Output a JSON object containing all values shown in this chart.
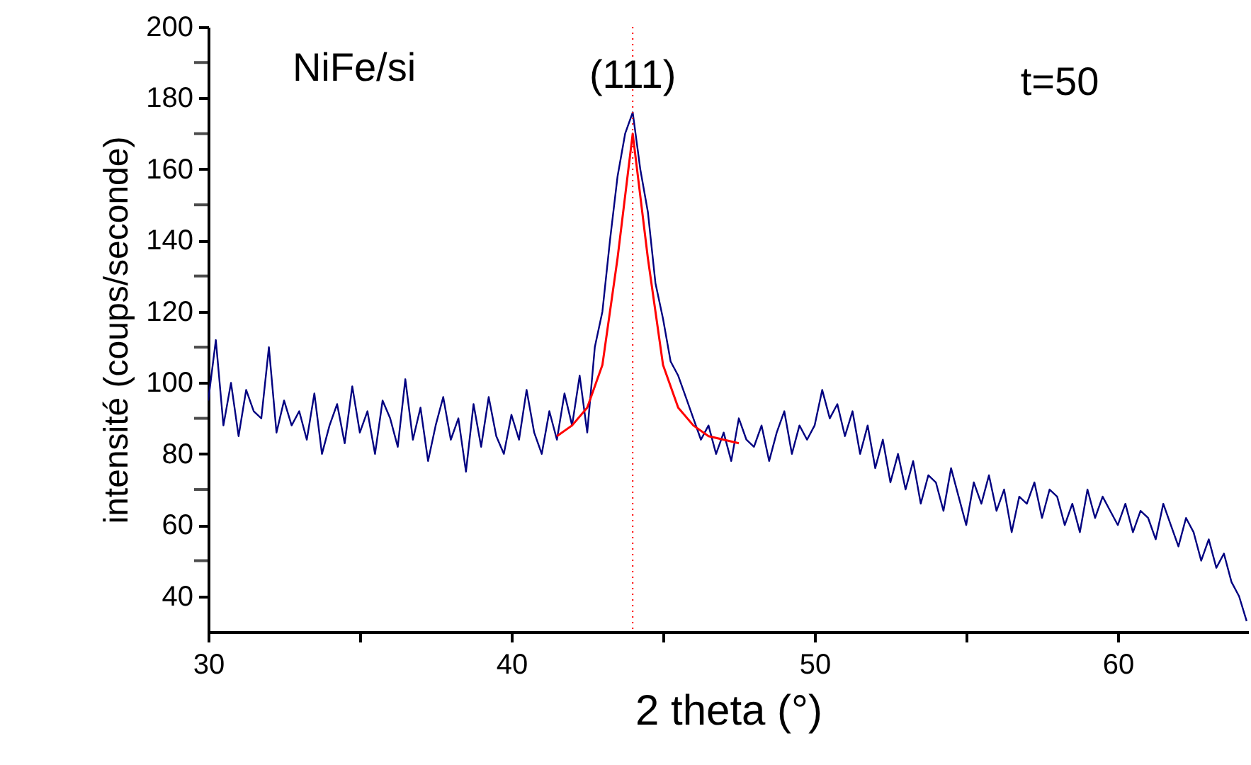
{
  "chart_data": {
    "type": "line",
    "xlabel": "2 theta (°)",
    "ylabel": "intensité (coups/seconde)",
    "annotations": [
      "NiFe/si",
      "t=50",
      {
        "text": "(111)",
        "x": 44,
        "y": 186
      }
    ],
    "series": [
      {
        "color": "#000080",
        "line_style": "solid",
        "x": [
          30,
          30.25,
          30.5,
          30.75,
          31,
          31.25,
          31.5,
          31.75,
          32,
          32.25,
          32.5,
          32.75,
          33,
          33.25,
          33.5,
          33.75,
          34,
          34.25,
          34.5,
          34.75,
          35,
          35.25,
          35.5,
          35.75,
          36,
          36.25,
          36.5,
          36.75,
          37,
          37.25,
          37.5,
          37.75,
          38,
          38.25,
          38.5,
          38.75,
          39,
          39.25,
          39.5,
          39.75,
          40,
          40.25,
          40.5,
          40.75,
          41,
          41.25,
          41.5,
          41.75,
          42,
          42.25,
          42.5,
          42.75,
          43,
          43.25,
          43.5,
          43.75,
          44,
          44.25,
          44.5,
          44.75,
          45,
          45.25,
          45.5,
          45.75,
          46,
          46.25,
          46.5,
          46.75,
          47,
          47.25,
          47.5,
          47.75,
          48,
          48.25,
          48.5,
          48.75,
          49,
          49.25,
          49.5,
          49.75,
          50,
          50.25,
          50.5,
          50.75,
          51,
          51.25,
          51.5,
          51.75,
          52,
          52.25,
          52.5,
          52.75,
          53,
          53.25,
          53.5,
          53.75,
          54,
          54.25,
          54.5,
          54.75,
          55,
          55.25,
          55.5,
          55.75,
          56,
          56.25,
          56.5,
          56.75,
          57,
          57.25,
          57.5,
          57.75,
          58,
          58.25,
          58.5,
          58.75,
          59,
          59.25,
          59.5,
          59.75,
          60,
          60.25,
          60.5,
          60.75,
          61,
          61.25,
          61.5,
          61.75,
          62,
          62.25,
          62.5,
          62.75,
          63,
          63.25,
          63.5,
          63.75,
          64,
          64.25
        ],
        "values": [
          95,
          112,
          88,
          100,
          85,
          98,
          92,
          90,
          110,
          86,
          95,
          88,
          92,
          84,
          97,
          80,
          88,
          94,
          83,
          99,
          86,
          92,
          80,
          95,
          90,
          82,
          101,
          84,
          93,
          78,
          88,
          96,
          84,
          90,
          75,
          94,
          82,
          96,
          85,
          80,
          91,
          84,
          98,
          86,
          80,
          92,
          84,
          97,
          88,
          102,
          86,
          110,
          120,
          140,
          158,
          170,
          176,
          160,
          148,
          128,
          118,
          106,
          102,
          96,
          90,
          84,
          88,
          80,
          86,
          78,
          90,
          84,
          82,
          88,
          78,
          86,
          92,
          80,
          88,
          84,
          88,
          98,
          90,
          94,
          85,
          92,
          80,
          88,
          76,
          84,
          72,
          80,
          70,
          78,
          66,
          74,
          72,
          64,
          76,
          68,
          60,
          72,
          66,
          74,
          64,
          70,
          58,
          68,
          66,
          72,
          62,
          70,
          68,
          60,
          66,
          58,
          70,
          62,
          68,
          64,
          60,
          66,
          58,
          64,
          62,
          56,
          66,
          60,
          54,
          62,
          58,
          50,
          56,
          48,
          52,
          44,
          40,
          33
        ]
      },
      {
        "color": "#ff0000",
        "line_style": "solid",
        "x": [
          41.5,
          42,
          42.5,
          43,
          43.5,
          44,
          44.5,
          45,
          45.5,
          46,
          46.5,
          47,
          47.5
        ],
        "values": [
          85,
          88,
          93,
          105,
          135,
          170,
          135,
          105,
          93,
          88,
          85,
          84,
          83
        ]
      }
    ],
    "ref_lines": [
      {
        "axis": "x",
        "value": 44,
        "color": "#ff0000",
        "line_style": "dotted"
      }
    ],
    "xlim": [
      30,
      64.3
    ],
    "ylim": [
      30,
      200
    ],
    "xticks": [
      30,
      {
        "value": 35,
        "label": null
      },
      40,
      {
        "value": 45,
        "label": null
      },
      50,
      {
        "value": 55,
        "label": null
      },
      60
    ],
    "yticks": [
      40,
      {
        "value": 50,
        "label": null
      },
      60,
      {
        "value": 70,
        "label": null
      },
      80,
      {
        "value": 90,
        "label": null
      },
      100,
      {
        "value": 110,
        "label": null
      },
      120,
      {
        "value": 130,
        "label": null
      },
      140,
      {
        "value": 150,
        "label": null
      },
      160,
      {
        "value": 170,
        "label": null
      },
      180,
      {
        "value": 190,
        "label": null
      },
      200
    ],
    "grid": false,
    "marker": "none"
  }
}
